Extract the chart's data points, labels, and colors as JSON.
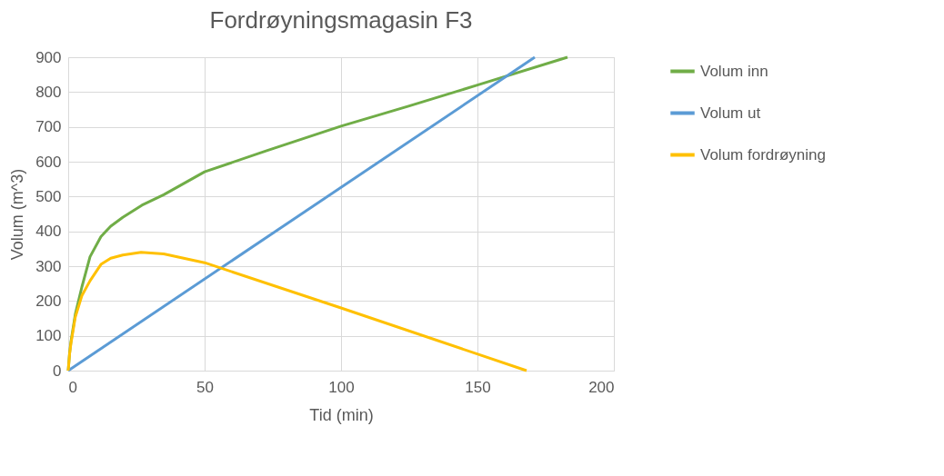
{
  "chart_data": {
    "type": "line",
    "title": "Fordrøyningsmagasin F3",
    "xlabel": "Tid (min)",
    "ylabel": "Volum (m^3)",
    "xlim": [
      0,
      200
    ],
    "xticks": [
      0,
      50,
      100,
      150,
      200
    ],
    "ylim": [
      0,
      900
    ],
    "yticks": [
      0,
      100,
      200,
      300,
      400,
      500,
      600,
      700,
      800,
      900
    ],
    "grid": true,
    "legend": "right",
    "marker": "none",
    "line_style": "solid",
    "series": [
      {
        "name": "Volum inn",
        "color": "#70ad47",
        "x": [
          0,
          0.5,
          1,
          2.6,
          5,
          8,
          12,
          15.6,
          20,
          27,
          35,
          50,
          72.5,
          100,
          125,
          150,
          183
        ],
        "values": [
          0,
          50,
          83,
          162,
          240,
          327,
          385,
          415,
          440,
          475,
          505,
          571,
          631,
          702,
          760,
          820,
          900
        ]
      },
      {
        "name": "Volum ut",
        "color": "#5b9bd5",
        "x": [
          0,
          171
        ],
        "values": [
          0,
          900
        ]
      },
      {
        "name": "Volum fordrøyning",
        "color": "#ffc000",
        "x": [
          0,
          0.5,
          1,
          2.6,
          5,
          8,
          12,
          15.6,
          20,
          26.7,
          35,
          50,
          100,
          168
        ],
        "values": [
          0,
          48,
          78,
          154,
          215,
          258,
          305,
          323,
          332,
          340,
          335,
          310,
          180,
          0
        ]
      }
    ]
  }
}
